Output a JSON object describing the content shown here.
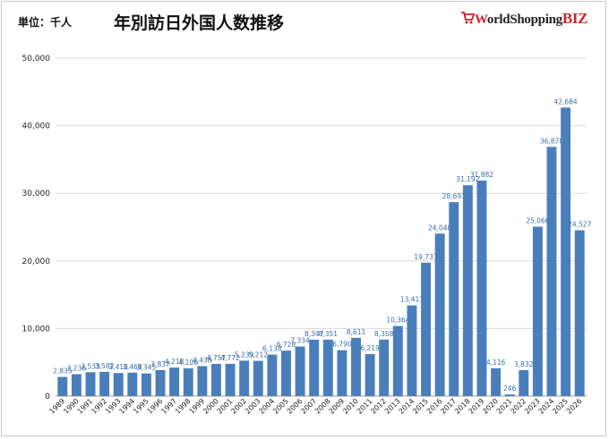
{
  "header": {
    "unit_label": "単位：千人",
    "title": "年別訪日外国人数推移",
    "logo": {
      "text_a": "W",
      "text_b": "orldShopping",
      "text_c": "BIZ",
      "icon": "shopping-cart-icon"
    }
  },
  "colors": {
    "bar": "#4a7ebb",
    "label": "#3a6ea5",
    "grid": "#d9d9d9"
  },
  "chart_data": {
    "type": "bar",
    "title": "年別訪日外国人数推移",
    "ylabel": "単位：千人",
    "xlabel": "",
    "ylim": [
      0,
      50000
    ],
    "yticks": [
      "0",
      "10,000",
      "20,000",
      "30,000",
      "40,000",
      "50,000"
    ],
    "grid": true,
    "categories": [
      "1989",
      "1990",
      "1991",
      "1992",
      "1993",
      "1994",
      "1995",
      "1996",
      "1997",
      "1998",
      "1999",
      "2000",
      "2001",
      "2002",
      "2003",
      "2004",
      "2005",
      "2006",
      "2007",
      "2008",
      "2009",
      "2010",
      "2011",
      "2012",
      "2013",
      "2014",
      "2015",
      "2016",
      "2017",
      "2018",
      "2019",
      "2020",
      "2021",
      "2022",
      "2023",
      "2024",
      "2025",
      "2026"
    ],
    "values": [
      2835,
      3236,
      3533,
      3582,
      3410,
      3468,
      3345,
      3837,
      4218,
      4106,
      4438,
      4757,
      4772,
      5239,
      5212,
      6138,
      6728,
      7334,
      8347,
      8351,
      6790,
      8611,
      6219,
      8358,
      10364,
      13413,
      19737,
      24040,
      28691,
      31192,
      31882,
      4116,
      246,
      3832,
      25066,
      36870,
      42684,
      24527
    ],
    "labels": [
      "2,835",
      "3,236",
      "3,533",
      "3,582",
      "3,410",
      "3,468",
      "3,345",
      "3,837",
      "4,218",
      "4,106",
      "4,438",
      "4,757",
      "4,772",
      "5,239",
      "5,212",
      "6,138",
      "6,728",
      "7,334",
      "8,347",
      "8,351",
      "6,790",
      "8,611",
      "6,219",
      "8,358",
      "10,364",
      "13,413",
      "19,737",
      "24,040",
      "28,691",
      "31,192",
      "31,882",
      "4,116",
      "246",
      "3,832",
      "25,066",
      "36,870",
      "42,684",
      "24,527"
    ]
  }
}
